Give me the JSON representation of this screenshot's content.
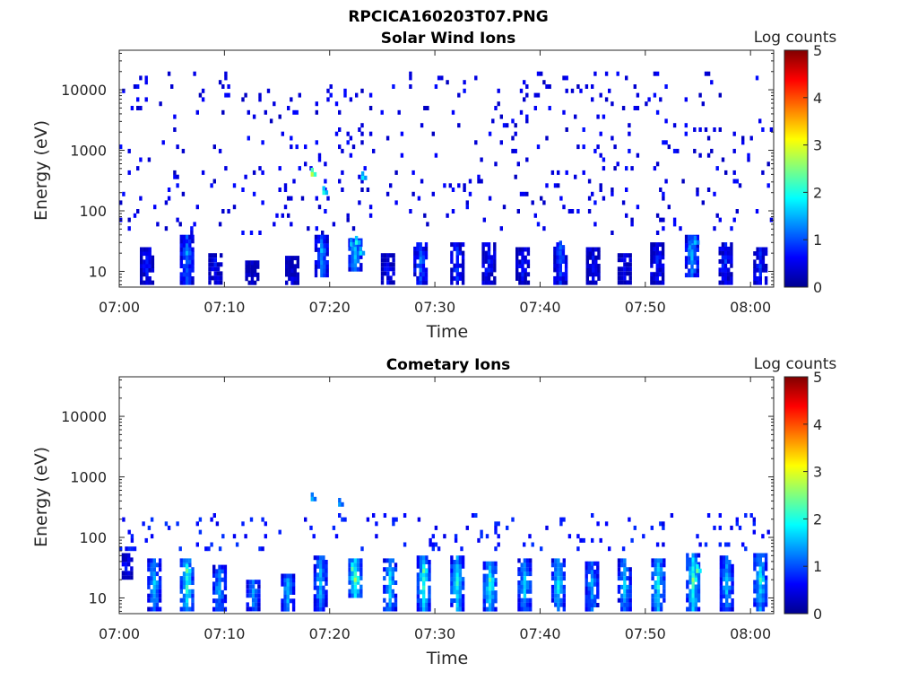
{
  "figure": {
    "title": "RPCICA160203T07.PNG",
    "colormap": "jet",
    "colors": {
      "background": "#ffffff",
      "axes": "#262626",
      "empty_bin": "#ffffff"
    }
  },
  "chart_data": [
    {
      "type": "heatmap",
      "title": "Solar Wind Ions",
      "xlabel": "Time",
      "ylabel": "Energy (eV)",
      "x_ticks": [
        "07:00",
        "07:10",
        "07:20",
        "07:30",
        "07:40",
        "07:50",
        "08:00"
      ],
      "x_tick_values_min": [
        0,
        10,
        20,
        30,
        40,
        50,
        60
      ],
      "xlim_min": [
        0,
        62.2
      ],
      "y_scale": "log",
      "y_ticks": [
        "10",
        "100",
        "1000",
        "10000"
      ],
      "y_tick_values": [
        10,
        100,
        1000,
        10000
      ],
      "ylim": [
        5.5,
        45000
      ],
      "colorbar": {
        "label": "Log counts",
        "ticks": [
          "0",
          "1",
          "2",
          "3",
          "4",
          "5"
        ],
        "range": [
          0,
          5
        ]
      },
      "hot_spots": [
        {
          "t_min": 18.2,
          "energy_ev": 400,
          "log_counts": 2.8
        },
        {
          "t_min": 19.3,
          "energy_ev": 200,
          "log_counts": 2.0
        },
        {
          "t_min": 21.9,
          "energy_ev": 28,
          "log_counts": 1.6
        },
        {
          "t_min": 22.4,
          "energy_ev": 30,
          "log_counts": 2.0
        },
        {
          "t_min": 22.8,
          "energy_ev": 20,
          "log_counts": 1.8
        },
        {
          "t_min": 23.0,
          "energy_ev": 350,
          "log_counts": 1.8
        },
        {
          "t_min": 28.5,
          "energy_ev": 16,
          "log_counts": 1.3
        },
        {
          "t_min": 41.8,
          "energy_ev": 25,
          "log_counts": 1.2
        },
        {
          "t_min": 54.1,
          "energy_ev": 25,
          "log_counts": 1.4
        },
        {
          "t_min": 54.6,
          "energy_ev": 30,
          "log_counts": 1.6
        },
        {
          "t_min": 6.3,
          "energy_ev": 20,
          "log_counts": 1.5
        },
        {
          "t_min": 19.1,
          "energy_ev": 22,
          "log_counts": 1.6
        }
      ],
      "bursts": [
        {
          "t_min": 2.5,
          "e_low": 6,
          "e_high": 25,
          "level": 0.7
        },
        {
          "t_min": 6.3,
          "e_low": 6,
          "e_high": 40,
          "level": 1.2
        },
        {
          "t_min": 9.0,
          "e_low": 6,
          "e_high": 20,
          "level": 0.6
        },
        {
          "t_min": 12.5,
          "e_low": 6,
          "e_high": 15,
          "level": 0.4
        },
        {
          "t_min": 16.3,
          "e_low": 6,
          "e_high": 18,
          "level": 0.4
        },
        {
          "t_min": 19.1,
          "e_low": 8,
          "e_high": 40,
          "level": 1.3
        },
        {
          "t_min": 22.3,
          "e_low": 10,
          "e_high": 35,
          "level": 1.6
        },
        {
          "t_min": 25.4,
          "e_low": 6,
          "e_high": 20,
          "level": 0.6
        },
        {
          "t_min": 28.5,
          "e_low": 6,
          "e_high": 30,
          "level": 1.1
        },
        {
          "t_min": 32.0,
          "e_low": 6,
          "e_high": 30,
          "level": 0.9
        },
        {
          "t_min": 35.0,
          "e_low": 6,
          "e_high": 30,
          "level": 0.7
        },
        {
          "t_min": 38.2,
          "e_low": 6,
          "e_high": 25,
          "level": 0.7
        },
        {
          "t_min": 41.8,
          "e_low": 6,
          "e_high": 30,
          "level": 1.0
        },
        {
          "t_min": 44.9,
          "e_low": 6,
          "e_high": 25,
          "level": 0.6
        },
        {
          "t_min": 47.9,
          "e_low": 6,
          "e_high": 20,
          "level": 0.5
        },
        {
          "t_min": 51.0,
          "e_low": 6,
          "e_high": 30,
          "level": 0.7
        },
        {
          "t_min": 54.3,
          "e_low": 8,
          "e_high": 40,
          "level": 1.4
        },
        {
          "t_min": 57.5,
          "e_low": 6,
          "e_high": 30,
          "level": 0.8
        },
        {
          "t_min": 60.8,
          "e_low": 6,
          "e_high": 25,
          "level": 0.8
        }
      ],
      "background": {
        "e_low": 40,
        "e_high": 20000,
        "density": 0.05,
        "level": 0.3
      }
    },
    {
      "type": "heatmap",
      "title": "Cometary Ions",
      "xlabel": "Time",
      "ylabel": "Energy (eV)",
      "x_ticks": [
        "07:00",
        "07:10",
        "07:20",
        "07:30",
        "07:40",
        "07:50",
        "08:00"
      ],
      "x_tick_values_min": [
        0,
        10,
        20,
        30,
        40,
        50,
        60
      ],
      "xlim_min": [
        0,
        62.2
      ],
      "y_scale": "log",
      "y_ticks": [
        "10",
        "100",
        "1000",
        "10000"
      ],
      "y_tick_values": [
        10,
        100,
        1000,
        10000
      ],
      "ylim": [
        5.5,
        45000
      ],
      "colorbar": {
        "label": "Log counts",
        "ticks": [
          "0",
          "1",
          "2",
          "3",
          "4",
          "5"
        ],
        "range": [
          0,
          5
        ]
      },
      "hot_spots": [
        {
          "t_min": 22.3,
          "energy_ev": 20,
          "log_counts": 2.7
        },
        {
          "t_min": 22.0,
          "energy_ev": 30,
          "log_counts": 2.3
        },
        {
          "t_min": 6.3,
          "energy_ev": 28,
          "log_counts": 2.4
        },
        {
          "t_min": 28.8,
          "energy_ev": 28,
          "log_counts": 2.4
        },
        {
          "t_min": 35.1,
          "energy_ev": 20,
          "log_counts": 2.3
        },
        {
          "t_min": 54.4,
          "energy_ev": 20,
          "log_counts": 2.6
        },
        {
          "t_min": 54.8,
          "energy_ev": 28,
          "log_counts": 2.4
        },
        {
          "t_min": 60.8,
          "energy_ev": 20,
          "log_counts": 2.2
        },
        {
          "t_min": 18.2,
          "energy_ev": 430,
          "log_counts": 1.5
        },
        {
          "t_min": 20.8,
          "energy_ev": 350,
          "log_counts": 1.4
        }
      ],
      "bursts": [
        {
          "t_min": 0.5,
          "e_low": 20,
          "e_high": 55,
          "level": 0.6
        },
        {
          "t_min": 3.2,
          "e_low": 6,
          "e_high": 45,
          "level": 1.6
        },
        {
          "t_min": 6.3,
          "e_low": 6,
          "e_high": 45,
          "level": 2.0
        },
        {
          "t_min": 9.4,
          "e_low": 6,
          "e_high": 35,
          "level": 1.5
        },
        {
          "t_min": 12.6,
          "e_low": 6,
          "e_high": 20,
          "level": 1.4
        },
        {
          "t_min": 15.9,
          "e_low": 6,
          "e_high": 25,
          "level": 1.6
        },
        {
          "t_min": 19.0,
          "e_low": 6,
          "e_high": 50,
          "level": 1.6
        },
        {
          "t_min": 22.3,
          "e_low": 10,
          "e_high": 45,
          "level": 2.2
        },
        {
          "t_min": 25.6,
          "e_low": 6,
          "e_high": 45,
          "level": 1.8
        },
        {
          "t_min": 28.8,
          "e_low": 6,
          "e_high": 50,
          "level": 2.0
        },
        {
          "t_min": 32.0,
          "e_low": 6,
          "e_high": 50,
          "level": 1.9
        },
        {
          "t_min": 35.1,
          "e_low": 6,
          "e_high": 40,
          "level": 2.0
        },
        {
          "t_min": 38.4,
          "e_low": 6,
          "e_high": 45,
          "level": 1.7
        },
        {
          "t_min": 41.6,
          "e_low": 6,
          "e_high": 45,
          "level": 1.8
        },
        {
          "t_min": 44.8,
          "e_low": 6,
          "e_high": 40,
          "level": 1.5
        },
        {
          "t_min": 47.9,
          "e_low": 6,
          "e_high": 45,
          "level": 1.6
        },
        {
          "t_min": 51.1,
          "e_low": 6,
          "e_high": 45,
          "level": 1.9
        },
        {
          "t_min": 54.4,
          "e_low": 6,
          "e_high": 55,
          "level": 2.1
        },
        {
          "t_min": 57.6,
          "e_low": 6,
          "e_high": 50,
          "level": 1.6
        },
        {
          "t_min": 60.8,
          "e_low": 6,
          "e_high": 55,
          "level": 1.8
        }
      ],
      "background": {
        "e_low": 60,
        "e_high": 250,
        "density": 0.06,
        "level": 0.5
      }
    }
  ]
}
